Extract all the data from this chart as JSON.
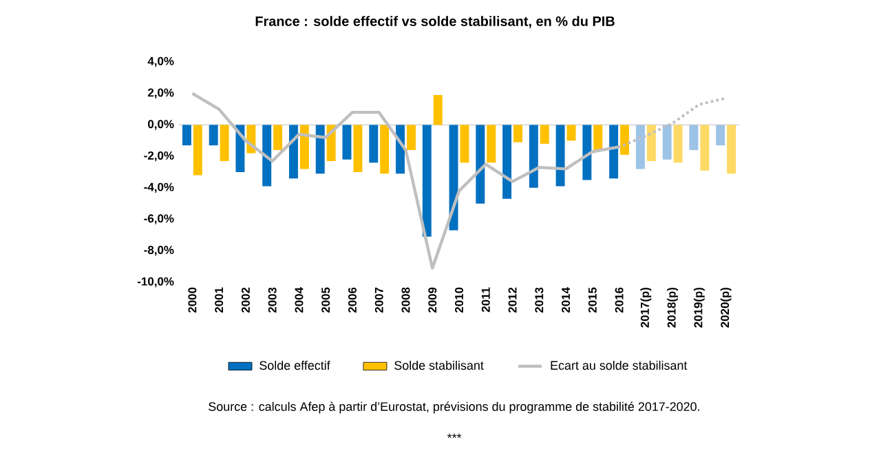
{
  "chart_data": {
    "type": "bar",
    "title": "France : solde effectif vs solde stabilisant, en % du PIB",
    "categories": [
      "2000",
      "2001",
      "2002",
      "2003",
      "2004",
      "2005",
      "2006",
      "2007",
      "2008",
      "2009",
      "2010",
      "2011",
      "2012",
      "2013",
      "2014",
      "2015",
      "2016",
      "2017(p)",
      "2018(p)",
      "2019(p)",
      "2020(p)"
    ],
    "series": [
      {
        "name": "Solde effectif",
        "color": "#0070c0",
        "colors": [
          "#0070c0",
          "#0070c0",
          "#0070c0",
          "#0070c0",
          "#0070c0",
          "#0070c0",
          "#0070c0",
          "#0070c0",
          "#0070c0",
          "#0070c0",
          "#0070c0",
          "#0070c0",
          "#0070c0",
          "#0070c0",
          "#0070c0",
          "#0070c0",
          "#0070c0",
          "#9dc3e6",
          "#9dc3e6",
          "#9dc3e6",
          "#9dc3e6"
        ],
        "values": [
          -1.3,
          -1.3,
          -3.0,
          -3.9,
          -3.4,
          -3.1,
          -2.2,
          -2.4,
          -3.1,
          -7.1,
          -6.7,
          -5.0,
          -4.7,
          -4.0,
          -3.9,
          -3.5,
          -3.4,
          -2.8,
          -2.2,
          -1.6,
          -1.3
        ]
      },
      {
        "name": "Solde stabilisant",
        "color": "#ffc000",
        "colors": [
          "#ffc000",
          "#ffc000",
          "#ffc000",
          "#ffc000",
          "#ffc000",
          "#ffc000",
          "#ffc000",
          "#ffc000",
          "#ffc000",
          "#ffc000",
          "#ffc000",
          "#ffc000",
          "#ffc000",
          "#ffc000",
          "#ffc000",
          "#ffc000",
          "#ffc000",
          "#ffd966",
          "#ffd966",
          "#ffd966",
          "#ffd966"
        ],
        "values": [
          -3.2,
          -2.3,
          -1.8,
          -1.6,
          -2.8,
          -2.3,
          -3.0,
          -3.1,
          -1.6,
          1.9,
          -2.4,
          -2.4,
          -1.1,
          -1.2,
          -1.0,
          -1.6,
          -1.9,
          -2.3,
          -2.4,
          -2.9,
          -3.1
        ]
      },
      {
        "name": "Ecart au solde stabilisant",
        "type": "line",
        "color": "#bfbfbf",
        "line_style": "solid",
        "values": [
          2.0,
          1.0,
          -1.0,
          -2.3,
          -0.6,
          -0.8,
          0.8,
          0.8,
          -1.6,
          -9.1,
          -4.2,
          -2.5,
          -3.6,
          -2.7,
          -2.8,
          -1.7,
          -1.4,
          null,
          null,
          null,
          null
        ]
      },
      {
        "type": "line",
        "color": "#bfbfbf",
        "line_style": "dotted",
        "values": [
          null,
          null,
          null,
          null,
          null,
          null,
          null,
          null,
          null,
          null,
          null,
          null,
          null,
          null,
          null,
          null,
          -1.4,
          -0.7,
          0.1,
          1.3,
          1.7
        ]
      }
    ],
    "ylim": [
      -10,
      4
    ],
    "yticks": [
      {
        "value": -10,
        "label": "-10,0%"
      },
      {
        "value": -8,
        "label": "-8,0%"
      },
      {
        "value": -6,
        "label": "-6,0%"
      },
      {
        "value": -4,
        "label": "-4,0%"
      },
      {
        "value": -2,
        "label": "-2,0%"
      },
      {
        "value": 0,
        "label": "0,0%"
      },
      {
        "value": 2,
        "label": "2,0%"
      },
      {
        "value": 4,
        "label": "4,0%"
      }
    ],
    "grid": false,
    "ref_lines": [
      {
        "axis": "y",
        "value": 0,
        "color": "#d9d9d9"
      }
    ],
    "legend": "bottom",
    "annotations": [
      "Source : calculs Afep à partir d’Eurostat, prévisions du programme de stabilité 2017-2020.",
      "***"
    ]
  }
}
